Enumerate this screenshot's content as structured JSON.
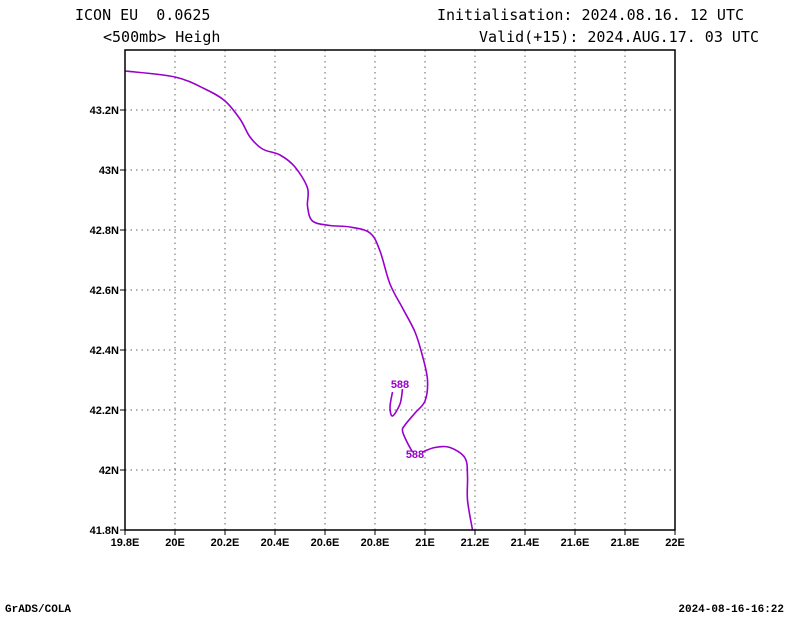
{
  "header": {
    "model": "ICON EU  0.0625",
    "field": "<500mb> Heigh",
    "init": "Initialisation: 2024.08.16. 12 UTC",
    "valid": "Valid(+15): 2024.AUG.17. 03 UTC"
  },
  "footer": {
    "left": "GrADS/COLA",
    "right": "2024-08-16-16:22"
  },
  "chart_data": {
    "type": "line",
    "xlim": [
      19.8,
      22.0
    ],
    "ylim": [
      41.8,
      43.4
    ],
    "grid": true,
    "x_ticks": [
      {
        "v": 19.8,
        "label": "19.8E"
      },
      {
        "v": 20.0,
        "label": "20E"
      },
      {
        "v": 20.2,
        "label": "20.2E"
      },
      {
        "v": 20.4,
        "label": "20.4E"
      },
      {
        "v": 20.6,
        "label": "20.6E"
      },
      {
        "v": 20.8,
        "label": "20.8E"
      },
      {
        "v": 21.0,
        "label": "21E"
      },
      {
        "v": 21.2,
        "label": "21.2E"
      },
      {
        "v": 21.4,
        "label": "21.4E"
      },
      {
        "v": 21.6,
        "label": "21.6E"
      },
      {
        "v": 21.8,
        "label": "21.8E"
      },
      {
        "v": 22.0,
        "label": "22E"
      }
    ],
    "y_ticks": [
      {
        "v": 41.8,
        "label": "41.8N"
      },
      {
        "v": 42.0,
        "label": "42N"
      },
      {
        "v": 42.2,
        "label": "42.2N"
      },
      {
        "v": 42.4,
        "label": "42.4N"
      },
      {
        "v": 42.6,
        "label": "42.6N"
      },
      {
        "v": 42.8,
        "label": "42.8N"
      },
      {
        "v": 43.0,
        "label": "43N"
      },
      {
        "v": 43.2,
        "label": "43.2N"
      }
    ],
    "contour_color": "#9900cc",
    "contours": [
      {
        "label": "588",
        "label_at": [
          20.9,
          42.286
        ],
        "points": [
          [
            19.8,
            43.33
          ],
          [
            20.0,
            43.31
          ],
          [
            20.12,
            43.27
          ],
          [
            20.2,
            43.23
          ],
          [
            20.26,
            43.17
          ],
          [
            20.3,
            43.11
          ],
          [
            20.35,
            43.07
          ],
          [
            20.42,
            43.05
          ],
          [
            20.48,
            43.01
          ],
          [
            20.53,
            42.94
          ],
          [
            20.53,
            42.88
          ],
          [
            20.55,
            42.83
          ],
          [
            20.62,
            42.815
          ],
          [
            20.7,
            42.81
          ],
          [
            20.78,
            42.79
          ],
          [
            20.82,
            42.73
          ],
          [
            20.86,
            42.62
          ],
          [
            20.91,
            42.54
          ],
          [
            20.96,
            42.46
          ],
          [
            20.99,
            42.38
          ],
          [
            21.01,
            42.3
          ],
          [
            21.0,
            42.23
          ],
          [
            20.96,
            42.19
          ],
          [
            20.92,
            42.15
          ],
          [
            20.91,
            42.13
          ],
          [
            20.93,
            42.09
          ],
          [
            20.95,
            42.06
          ]
        ]
      },
      {
        "label": "588",
        "label_at": [
          20.96,
          42.053
        ],
        "points": [
          [
            20.99,
            42.06
          ],
          [
            21.04,
            42.075
          ],
          [
            21.1,
            42.075
          ],
          [
            21.16,
            42.04
          ],
          [
            21.17,
            41.98
          ],
          [
            21.17,
            41.9
          ],
          [
            21.19,
            41.8
          ]
        ]
      },
      {
        "label": "",
        "points": [
          [
            20.91,
            42.27
          ],
          [
            20.9,
            42.22
          ],
          [
            20.87,
            42.18
          ],
          [
            20.86,
            42.21
          ],
          [
            20.87,
            42.26
          ]
        ]
      }
    ]
  }
}
